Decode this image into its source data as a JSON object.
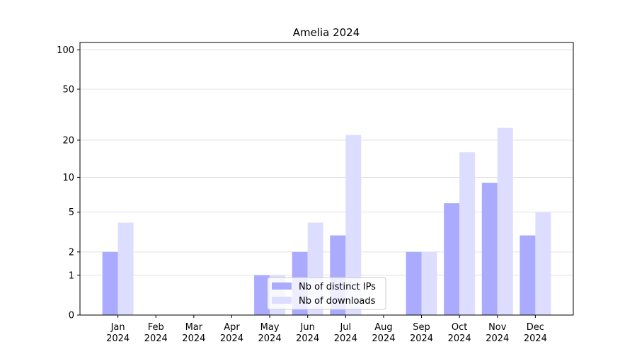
{
  "chart_data": {
    "type": "bar",
    "title": "Amelia 2024",
    "categories": [
      "Jan\n2024",
      "Feb\n2024",
      "Mar\n2024",
      "Apr\n2024",
      "May\n2024",
      "Jun\n2024",
      "Jul\n2024",
      "Aug\n2024",
      "Sep\n2024",
      "Oct\n2024",
      "Nov\n2024",
      "Dec\n2024"
    ],
    "series": [
      {
        "name": "Nb of distinct IPs",
        "color": "#aaaaff",
        "values": [
          2,
          0,
          0,
          0,
          1,
          2,
          3,
          0,
          2,
          6,
          9,
          3
        ]
      },
      {
        "name": "Nb of downloads",
        "color": "#ddddff",
        "values": [
          4,
          0,
          0,
          0,
          1,
          4,
          22,
          0,
          2,
          16,
          25,
          5
        ]
      }
    ],
    "yscale": "log1p",
    "ylim": [
      0,
      114
    ],
    "yticks": [
      0,
      1,
      2,
      5,
      10,
      20,
      50,
      100
    ],
    "grid": true,
    "legend": "lower center"
  }
}
